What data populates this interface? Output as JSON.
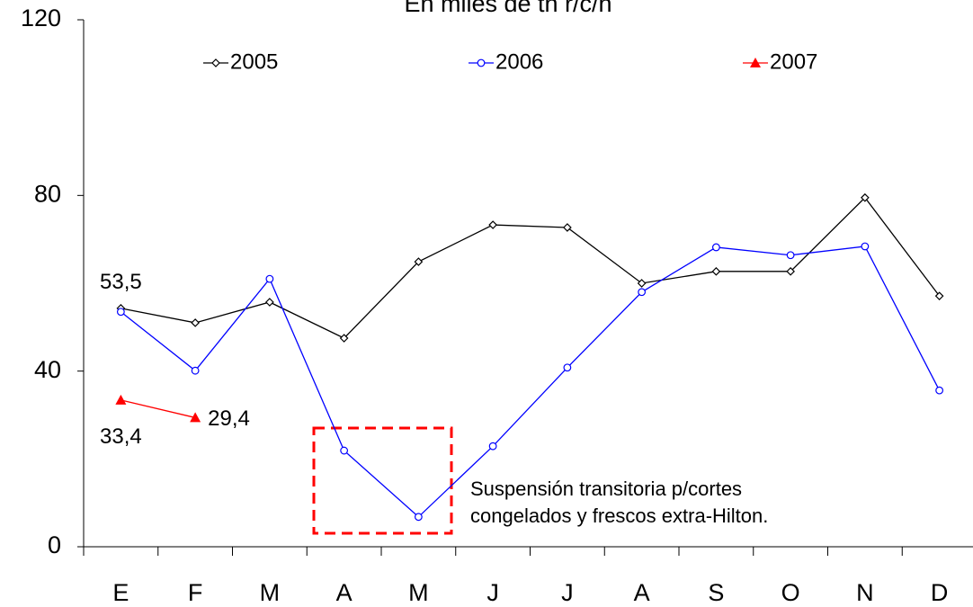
{
  "chart_data": {
    "type": "line",
    "title": "En miles de tn r/c/h",
    "categories": [
      "E",
      "F",
      "M",
      "A",
      "M",
      "J",
      "J",
      "A",
      "S",
      "O",
      "N",
      "D"
    ],
    "series": [
      {
        "name": "2005",
        "color": "#000000",
        "marker": "diamond",
        "values": [
          54.3,
          51.0,
          55.7,
          47.5,
          64.9,
          73.3,
          72.7,
          60.0,
          62.7,
          62.7,
          79.5,
          57.1
        ]
      },
      {
        "name": "2006",
        "color": "#0000ff",
        "marker": "circle",
        "values": [
          53.5,
          40.1,
          61.0,
          21.9,
          6.8,
          22.9,
          40.8,
          58.0,
          68.2,
          66.4,
          68.4,
          35.6
        ],
        "value_labels": [
          "53,5",
          null,
          null,
          null,
          null,
          null,
          null,
          null,
          null,
          null,
          null,
          null
        ]
      },
      {
        "name": "2007",
        "color": "#ff0000",
        "marker": "triangle",
        "values": [
          33.4,
          29.4,
          null,
          null,
          null,
          null,
          null,
          null,
          null,
          null,
          null,
          null
        ],
        "value_labels": [
          "33,4",
          "29,4",
          null,
          null,
          null,
          null,
          null,
          null,
          null,
          null,
          null,
          null
        ]
      }
    ],
    "ylim": [
      0,
      120
    ],
    "yticks": [
      0,
      40,
      80,
      120
    ],
    "annotation": [
      "Suspensión transitoria p/cortes",
      "congelados y frescos extra-Hilton."
    ]
  }
}
